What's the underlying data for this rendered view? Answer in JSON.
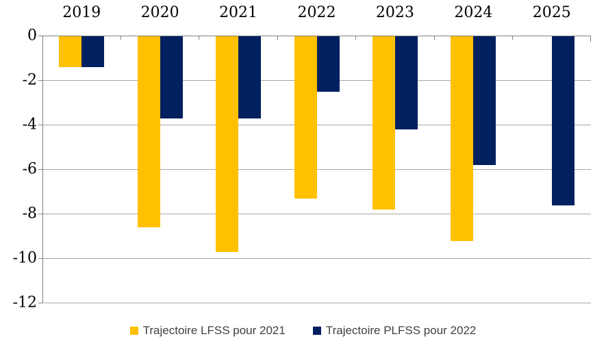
{
  "chart_data": {
    "type": "bar",
    "categories": [
      "2019",
      "2020",
      "2021",
      "2022",
      "2023",
      "2024",
      "2025"
    ],
    "series": [
      {
        "name": "Trajectoire LFSS pour 2021",
        "color": "#FFC000",
        "values": [
          -1.4,
          -8.6,
          -9.7,
          -7.3,
          -7.8,
          -9.2,
          null
        ]
      },
      {
        "name": "Trajectoire PLFSS pour 2022",
        "color": "#002060",
        "values": [
          -1.4,
          -3.7,
          -3.7,
          -2.5,
          -4.2,
          -5.8,
          -7.6
        ]
      }
    ],
    "title": "",
    "xlabel": "",
    "ylabel": "",
    "ylim": [
      -12,
      0
    ],
    "yticks": [
      0,
      -2,
      -4,
      -6,
      -8,
      -10,
      -12
    ],
    "ytick_labels": [
      "0",
      "-2",
      "-4",
      "-6",
      "-8",
      "-10",
      "-12"
    ],
    "grid": true,
    "legend_position": "bottom",
    "colors": {
      "gridline": "#a6a6a6",
      "axis": "#808080",
      "label_text": "#000000",
      "legend_text": "#404040",
      "background": "#ffffff"
    }
  }
}
